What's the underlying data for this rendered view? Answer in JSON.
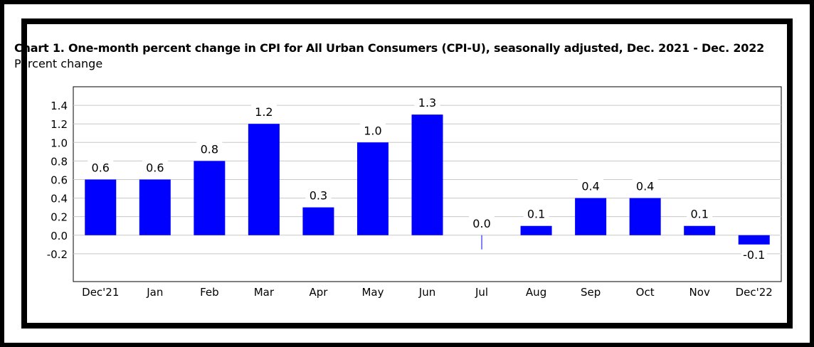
{
  "chart_data": {
    "type": "bar",
    "title": "Chart 1. One-month percent change in CPI for All Urban Consumers (CPI-U), seasonally adjusted, Dec. 2021 - Dec. 2022",
    "ylabel": "Percent change",
    "categories": [
      "Dec'21",
      "Jan",
      "Feb",
      "Mar",
      "Apr",
      "May",
      "Jun",
      "Jul",
      "Aug",
      "Sep",
      "Oct",
      "Nov",
      "Dec'22"
    ],
    "values": [
      0.6,
      0.6,
      0.8,
      1.2,
      0.3,
      1.0,
      1.3,
      0.0,
      0.1,
      0.4,
      0.4,
      0.1,
      -0.1
    ],
    "value_labels": [
      "0.6",
      "0.6",
      "0.8",
      "1.2",
      "0.3",
      "1.0",
      "1.3",
      "0.0",
      "0.1",
      "0.4",
      "0.4",
      "0.1",
      "-0.1"
    ],
    "yticks": [
      "1.4",
      "1.2",
      "1.0",
      "0.8",
      "0.6",
      "0.4",
      "0.2",
      "0.0",
      "-0.2"
    ],
    "ylim": [
      -0.5,
      1.6
    ],
    "grid": true,
    "colors": {
      "bar": "#0000ff",
      "grid": "#c8c8c8",
      "axis": "#000000"
    }
  }
}
